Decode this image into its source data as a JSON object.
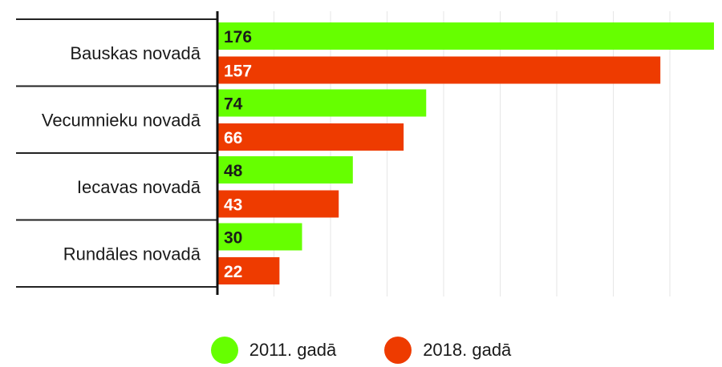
{
  "chart_data": {
    "type": "bar",
    "orientation": "horizontal",
    "categories": [
      "Bauskas novadā",
      "Vecumnieku novadā",
      "Iecavas novadā",
      "Rundāles novadā"
    ],
    "series": [
      {
        "name": "2011. gadā",
        "color": "#66ff00",
        "label_color": "#1a1a1a",
        "values": [
          176,
          74,
          48,
          30
        ]
      },
      {
        "name": "2018. gadā",
        "color": "#ee3b00",
        "label_color": "#ffffff",
        "values": [
          157,
          66,
          43,
          22
        ]
      }
    ],
    "xlim": [
      0,
      176
    ],
    "grid": true,
    "legend_position": "bottom"
  },
  "legend": {
    "items": [
      {
        "label": "2011. gadā",
        "color": "#66ff00"
      },
      {
        "label": "2018. gadā",
        "color": "#ee3b00"
      }
    ]
  }
}
